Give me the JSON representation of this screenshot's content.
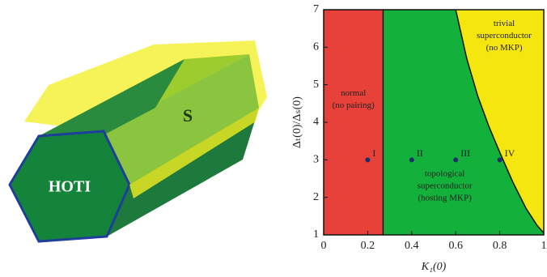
{
  "illustration": {
    "labels": [
      "HOTI",
      "S"
    ]
  },
  "chart_data": {
    "type": "phase",
    "xlabel": "K₁(0)",
    "ylabel": "Δₜ(0)/Δₛ(0)",
    "xlim": [
      0,
      1
    ],
    "ylim": [
      1,
      7
    ],
    "xticks": [
      0,
      0.2,
      0.4,
      0.6,
      0.8,
      1
    ],
    "yticks": [
      1,
      2,
      3,
      4,
      5,
      6,
      7
    ],
    "regions": [
      {
        "lines": [
          "normal",
          "(no pairing)"
        ],
        "color": "#e8413a"
      },
      {
        "lines": [
          "topological",
          "superconductor",
          "(hosting MKP)"
        ],
        "color": "#13b13c"
      },
      {
        "lines": [
          "trivial",
          "superconductor",
          "(no MKP)"
        ],
        "color": "#f5e60f"
      }
    ],
    "boundaries": [
      {
        "x": [
          0.27,
          0.27
        ],
        "y": [
          1,
          7
        ]
      },
      {
        "x": [
          0.6,
          0.65,
          0.7,
          0.75,
          0.8,
          0.86,
          0.92,
          0.97,
          1.0
        ],
        "y": [
          7,
          5.7,
          4.7,
          3.9,
          3.2,
          2.4,
          1.7,
          1.25,
          1.05
        ]
      }
    ],
    "points": {
      "x": [
        0.2,
        0.4,
        0.6,
        0.8
      ],
      "y": [
        3,
        3,
        3,
        3
      ],
      "labels": [
        "I",
        "II",
        "III",
        "IV"
      ],
      "color": "#1f2f6e"
    }
  }
}
